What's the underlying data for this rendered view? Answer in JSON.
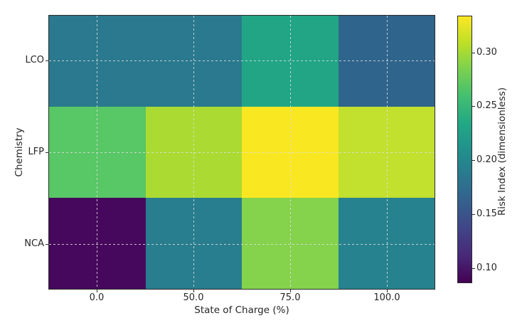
{
  "chart_data": {
    "type": "heatmap",
    "title": "",
    "xlabel": "State of Charge (%)",
    "ylabel": "Chemistry",
    "colorbar_label": "Risk Index (dimensionless)",
    "colormap": "viridis",
    "grid": true,
    "grid_style": "dashed",
    "legend_position": "colorbar-right",
    "x_categories": [
      "0.0",
      "50.0",
      "75.0",
      "100.0"
    ],
    "y_categories": [
      "LCO",
      "LFP",
      "NCA"
    ],
    "vmin": 0.086,
    "vmax": 0.334,
    "colorbar_ticks": [
      {
        "label": "0.30",
        "value": 0.3
      },
      {
        "label": "0.25",
        "value": 0.25
      },
      {
        "label": "0.20",
        "value": 0.2
      },
      {
        "label": "0.15",
        "value": 0.15
      },
      {
        "label": "0.10",
        "value": 0.1
      }
    ],
    "rows": [
      {
        "label": "LCO",
        "values": [
          0.19,
          0.19,
          0.23,
          0.16
        ],
        "colors": [
          "#2a798e",
          "#2a798e",
          "#21a585",
          "#2f648c"
        ]
      },
      {
        "label": "LFP",
        "values": [
          0.27,
          0.3,
          0.33,
          0.31
        ],
        "colors": [
          "#58c765",
          "#abdb32",
          "#f9e721",
          "#c2e02e"
        ]
      },
      {
        "label": "NCA",
        "values": [
          0.09,
          0.19,
          0.28,
          0.2
        ],
        "colors": [
          "#46085c",
          "#287d8e",
          "#85d24c",
          "#26828e"
        ]
      }
    ]
  },
  "style": {
    "background": "#ffffff",
    "spine_color": "#2b2b2b",
    "text_color": "#262626",
    "gridline_color": "#dedede"
  }
}
